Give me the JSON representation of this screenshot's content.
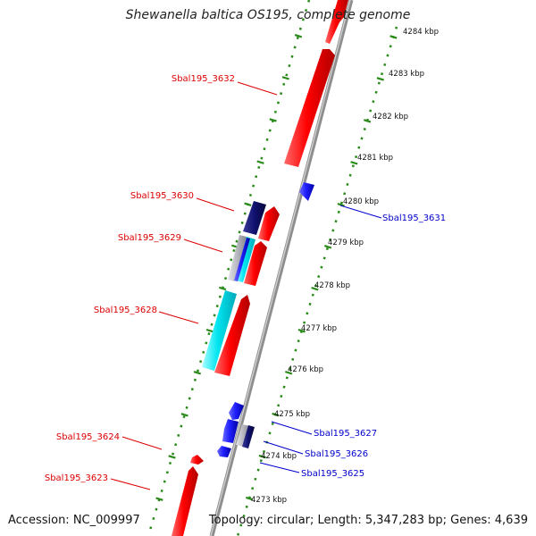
{
  "title": "Shewanella baltica OS195, complete genome",
  "footer": {
    "accession": "Accession: NC_009997",
    "summary": "Topology: circular; Length: 5,347,283 bp; Genes: 4,639"
  },
  "scale_labels": [
    "4284 kbp",
    "4283 kbp",
    "4282 kbp",
    "4281 kbp",
    "4280 kbp",
    "4279 kbp",
    "4278 kbp",
    "4277 kbp",
    "4276 kbp",
    "4275 kbp",
    "4274 kbp",
    "4273 kbp"
  ],
  "gene_labels": [
    {
      "text": "Sbal195_3632",
      "strand": "forward"
    },
    {
      "text": "Sbal195_3630",
      "strand": "forward"
    },
    {
      "text": "Sbal195_3629",
      "strand": "forward"
    },
    {
      "text": "Sbal195_3628",
      "strand": "forward"
    },
    {
      "text": "Sbal195_3624",
      "strand": "forward"
    },
    {
      "text": "Sbal195_3623",
      "strand": "forward"
    },
    {
      "text": "Sbal195_3631",
      "strand": "reverse"
    },
    {
      "text": "Sbal195_3627",
      "strand": "reverse"
    },
    {
      "text": "Sbal195_3626",
      "strand": "reverse"
    },
    {
      "text": "Sbal195_3625",
      "strand": "reverse"
    }
  ],
  "colors": {
    "forward": "#dd0000",
    "reverse": "#0000cc",
    "gene_red": "#ff0000",
    "gene_blue": "#1f1fff",
    "gene_navy": "#10106e",
    "gene_cyan": "#00e5f0",
    "gene_gray": "#b8b8c0",
    "dots": "#2a8a1a",
    "backbone": "#999999"
  }
}
